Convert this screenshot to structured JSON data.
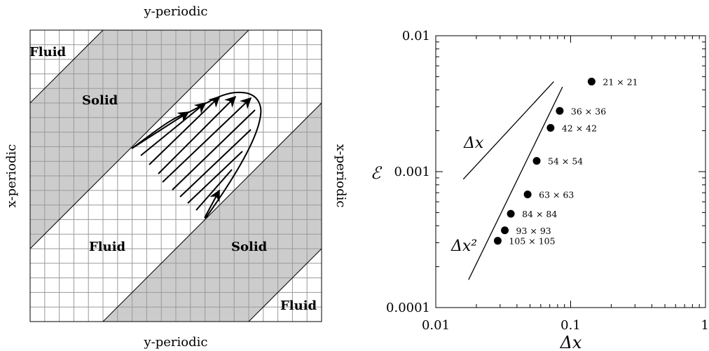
{
  "schematic": {
    "top_label": "y-periodic",
    "bottom_label": "y-periodic",
    "left_label": "x-periodic",
    "right_label": "x-periodic",
    "region_labels": {
      "fluid_top_left": "Fluid",
      "solid_upper": "Solid",
      "fluid_middle": "Fluid",
      "solid_lower": "Solid",
      "fluid_bottom_right": "Fluid"
    },
    "colors": {
      "solid": "#cccccc",
      "grid": "#999999",
      "border": "#000000"
    }
  },
  "chart_data": {
    "type": "scatter",
    "xlabel": "Δx",
    "ylabel": "ℰ",
    "xscale": "log",
    "yscale": "log",
    "xlim": [
      0.01,
      1
    ],
    "ylim": [
      0.0001,
      0.01
    ],
    "xticks": [
      0.01,
      0.1,
      1
    ],
    "xtick_labels": [
      "0.01",
      "0.1",
      "1"
    ],
    "yticks": [
      0.0001,
      0.001,
      0.01
    ],
    "ytick_labels": [
      "0.0001",
      "0.001",
      "0.01"
    ],
    "points": [
      {
        "x": 0.143,
        "y": 0.0046,
        "label": "21 × 21"
      },
      {
        "x": 0.083,
        "y": 0.0028,
        "label": "36 × 36"
      },
      {
        "x": 0.071,
        "y": 0.0021,
        "label": "42 × 42"
      },
      {
        "x": 0.056,
        "y": 0.0012,
        "label": "54 × 54"
      },
      {
        "x": 0.048,
        "y": 0.00068,
        "label": "63 × 63"
      },
      {
        "x": 0.036,
        "y": 0.00049,
        "label": "84 × 84"
      },
      {
        "x": 0.0325,
        "y": 0.00037,
        "label": "93 × 93"
      },
      {
        "x": 0.0288,
        "y": 0.00031,
        "label": "105 × 105"
      }
    ],
    "reference_lines": [
      {
        "label": "Δx",
        "points": [
          [
            0.016,
            0.00088
          ],
          [
            0.075,
            0.0046
          ]
        ]
      },
      {
        "label": "Δx²",
        "points": [
          [
            0.0175,
            0.00016
          ],
          [
            0.087,
            0.0042
          ]
        ]
      }
    ]
  }
}
